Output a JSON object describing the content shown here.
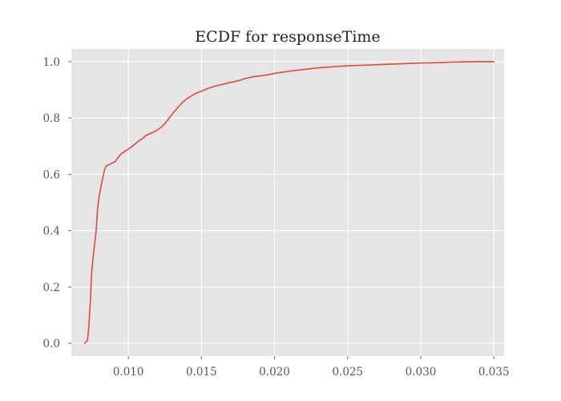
{
  "chart_data": {
    "type": "line",
    "title": "ECDF for responseTime",
    "xlabel": "",
    "ylabel": "",
    "xlim": [
      0.0061,
      0.0357
    ],
    "ylim": [
      -0.045,
      1.045
    ],
    "xticks": [
      0.01,
      0.015,
      0.02,
      0.025,
      0.03,
      0.035
    ],
    "xtick_labels": [
      "0.010",
      "0.015",
      "0.020",
      "0.025",
      "0.030",
      "0.035"
    ],
    "yticks": [
      0.0,
      0.2,
      0.4,
      0.6,
      0.8,
      1.0
    ],
    "ytick_labels": [
      "0.0",
      "0.2",
      "0.4",
      "0.6",
      "0.8",
      "1.0"
    ],
    "grid": true,
    "background_color": "#e5e5e5",
    "line_color": "#e24a33",
    "series": [
      {
        "x": [
          0.007,
          0.0072,
          0.0073,
          0.0074,
          0.0075,
          0.0076,
          0.0078,
          0.0079,
          0.008,
          0.0081,
          0.0083,
          0.0084,
          0.0085,
          0.0087,
          0.0089,
          0.0091,
          0.0093,
          0.0095,
          0.0098,
          0.0101,
          0.0104,
          0.0107,
          0.011,
          0.0112,
          0.0115,
          0.0118,
          0.012,
          0.0122,
          0.0125,
          0.0128,
          0.0131,
          0.0134,
          0.0137,
          0.014,
          0.0143,
          0.0146,
          0.015,
          0.0155,
          0.016,
          0.0165,
          0.017,
          0.0175,
          0.018,
          0.0185,
          0.019,
          0.0195,
          0.02,
          0.0205,
          0.021,
          0.022,
          0.023,
          0.024,
          0.025,
          0.026,
          0.027,
          0.028,
          0.029,
          0.03,
          0.031,
          0.032,
          0.033,
          0.034,
          0.035
        ],
        "y": [
          0.0,
          0.01,
          0.06,
          0.15,
          0.26,
          0.31,
          0.4,
          0.48,
          0.52,
          0.55,
          0.6,
          0.62,
          0.63,
          0.635,
          0.64,
          0.645,
          0.66,
          0.672,
          0.683,
          0.693,
          0.705,
          0.718,
          0.728,
          0.738,
          0.745,
          0.752,
          0.758,
          0.765,
          0.78,
          0.8,
          0.82,
          0.838,
          0.855,
          0.868,
          0.878,
          0.887,
          0.895,
          0.906,
          0.914,
          0.92,
          0.926,
          0.932,
          0.94,
          0.946,
          0.949,
          0.953,
          0.958,
          0.962,
          0.966,
          0.972,
          0.978,
          0.982,
          0.985,
          0.987,
          0.989,
          0.991,
          0.993,
          0.995,
          0.996,
          0.998,
          0.999,
          1.0,
          1.0
        ]
      }
    ]
  }
}
